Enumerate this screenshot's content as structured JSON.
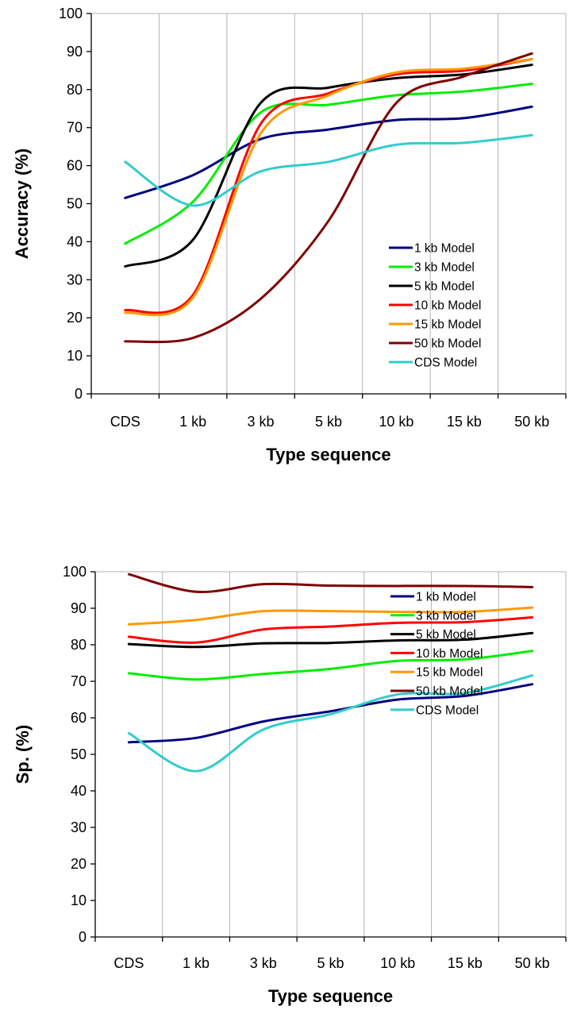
{
  "chart_data": [
    {
      "type": "line",
      "categories": [
        "CDS",
        "1 kb",
        "3 kb",
        "5 kb",
        "10 kb",
        "15 kb",
        "50 kb"
      ],
      "xlabel": "Type sequence",
      "ylabel": "Accuracy (%)",
      "ylim": [
        0,
        100
      ],
      "yticks": [
        0,
        10,
        20,
        30,
        40,
        50,
        60,
        70,
        80,
        90,
        100
      ],
      "grid": "vertical",
      "legend_position": "bottom-right",
      "series": [
        {
          "name": "1 kb Model",
          "color": "#000080",
          "values": [
            51.5,
            57.5,
            67.0,
            69.5,
            72.0,
            72.5,
            75.5
          ]
        },
        {
          "name": "3 kb Model",
          "color": "#00ee00",
          "values": [
            39.5,
            50.5,
            74.0,
            76.0,
            78.5,
            79.5,
            81.5
          ]
        },
        {
          "name": "5 kb Model",
          "color": "#000000",
          "values": [
            33.5,
            40.5,
            76.5,
            80.5,
            83.0,
            84.0,
            86.5
          ]
        },
        {
          "name": "10 kb Model",
          "color": "#ff0000",
          "values": [
            22.0,
            26.0,
            71.0,
            79.0,
            84.0,
            85.0,
            88.0
          ]
        },
        {
          "name": "15 kb Model",
          "color": "#ff9900",
          "values": [
            21.3,
            25.3,
            68.5,
            78.5,
            84.5,
            85.5,
            88.0
          ]
        },
        {
          "name": "50 kb Model",
          "color": "#800000",
          "values": [
            13.8,
            14.7,
            25.0,
            45.5,
            76.5,
            83.5,
            89.5
          ]
        },
        {
          "name": "CDS Model",
          "color": "#33cccc",
          "values": [
            61.0,
            49.5,
            58.5,
            61.0,
            65.5,
            66.0,
            68.0
          ]
        }
      ]
    },
    {
      "type": "line",
      "categories": [
        "CDS",
        "1 kb",
        "3 kb",
        "5 kb",
        "10 kb",
        "15 kb",
        "50 kb"
      ],
      "xlabel": "Type sequence",
      "ylabel": "Sp. (%)",
      "ylim": [
        0,
        100
      ],
      "yticks": [
        0,
        10,
        20,
        30,
        40,
        50,
        60,
        70,
        80,
        90,
        100
      ],
      "grid": "vertical",
      "legend_position": "bottom-right",
      "series": [
        {
          "name": "1 kb Model",
          "color": "#000080",
          "values": [
            53.3,
            54.5,
            59.0,
            61.8,
            65.0,
            66.0,
            69.2
          ]
        },
        {
          "name": "3 kb Model",
          "color": "#00ee00",
          "values": [
            72.2,
            70.5,
            72.0,
            73.4,
            75.6,
            76.0,
            78.3
          ]
        },
        {
          "name": "5 kb Model",
          "color": "#000000",
          "values": [
            80.2,
            79.4,
            80.4,
            80.5,
            81.2,
            81.4,
            83.2
          ]
        },
        {
          "name": "10 kb Model",
          "color": "#ff0000",
          "values": [
            82.2,
            80.6,
            84.2,
            85.0,
            86.0,
            86.2,
            87.5
          ]
        },
        {
          "name": "15 kb Model",
          "color": "#ff9900",
          "values": [
            85.6,
            86.8,
            89.2,
            89.2,
            89.0,
            89.0,
            90.2
          ]
        },
        {
          "name": "50 kb Model",
          "color": "#800000",
          "values": [
            99.3,
            94.5,
            96.6,
            96.2,
            96.1,
            96.1,
            95.8
          ]
        },
        {
          "name": "CDS Model",
          "color": "#33cccc",
          "values": [
            55.8,
            45.4,
            56.8,
            61.0,
            66.4,
            66.8,
            71.6
          ]
        }
      ]
    }
  ]
}
